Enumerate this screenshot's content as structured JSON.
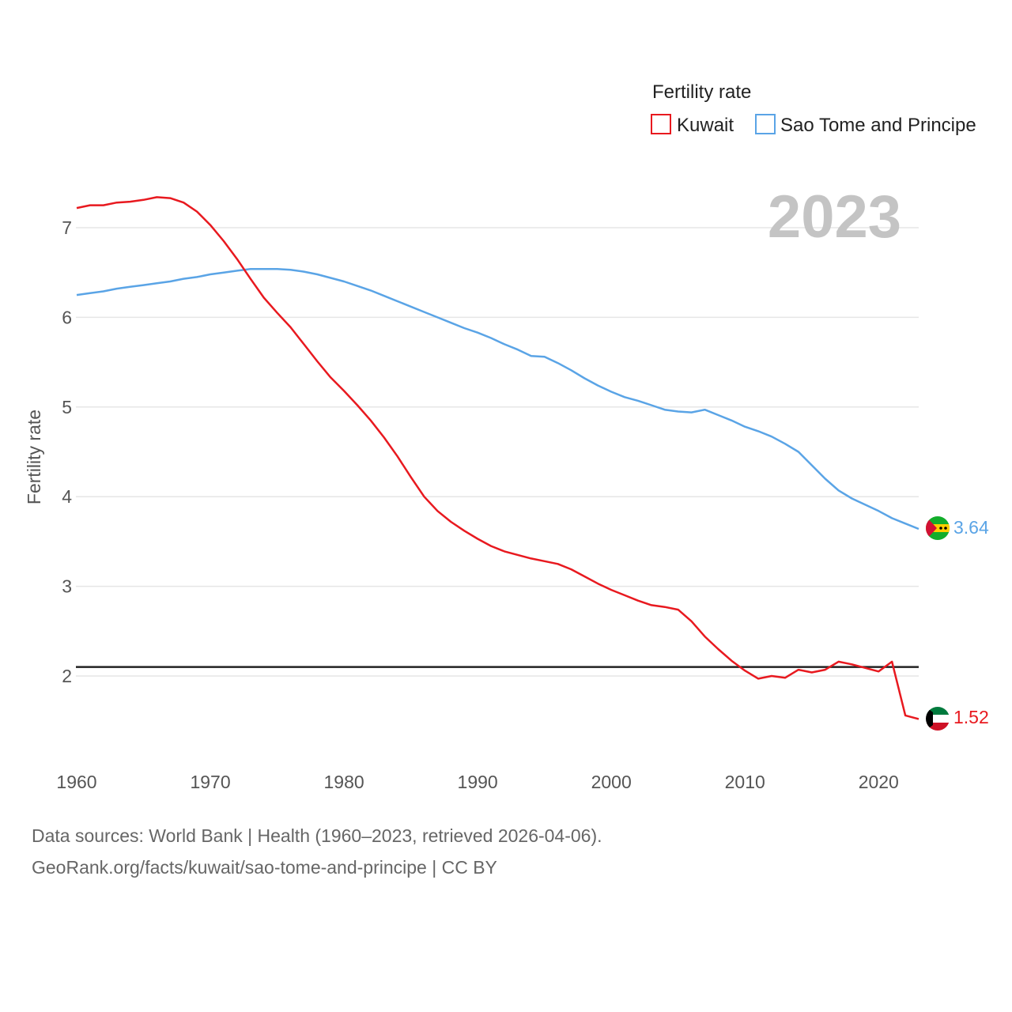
{
  "chart_data": {
    "type": "line",
    "legend_title": "Fertility rate",
    "ylabel": "Fertility rate",
    "xlabel": "",
    "year_label": "2023",
    "xlim": [
      1960,
      2023
    ],
    "ylim": [
      1,
      7.6
    ],
    "x_ticks": [
      1960,
      1970,
      1980,
      1990,
      2000,
      2010,
      2020
    ],
    "y_ticks": [
      2,
      3,
      4,
      5,
      6,
      7
    ],
    "reference_line": 2.1,
    "x": [
      1960,
      1961,
      1962,
      1963,
      1964,
      1965,
      1966,
      1967,
      1968,
      1969,
      1970,
      1971,
      1972,
      1973,
      1974,
      1975,
      1976,
      1977,
      1978,
      1979,
      1980,
      1981,
      1982,
      1983,
      1984,
      1985,
      1986,
      1987,
      1988,
      1989,
      1990,
      1991,
      1992,
      1993,
      1994,
      1995,
      1996,
      1997,
      1998,
      1999,
      2000,
      2001,
      2002,
      2003,
      2004,
      2005,
      2006,
      2007,
      2008,
      2009,
      2010,
      2011,
      2012,
      2013,
      2014,
      2015,
      2016,
      2017,
      2018,
      2019,
      2020,
      2021,
      2022,
      2023
    ],
    "series": [
      {
        "name": "Kuwait",
        "color": "#e8191f",
        "end_value": "1.52",
        "flag": "kuwait-flag",
        "values": [
          7.22,
          7.25,
          7.25,
          7.28,
          7.29,
          7.31,
          7.34,
          7.33,
          7.28,
          7.18,
          7.03,
          6.85,
          6.65,
          6.43,
          6.22,
          6.05,
          5.89,
          5.7,
          5.51,
          5.33,
          5.18,
          5.02,
          4.85,
          4.66,
          4.45,
          4.22,
          4.0,
          3.84,
          3.72,
          3.62,
          3.53,
          3.45,
          3.39,
          3.35,
          3.31,
          3.28,
          3.25,
          3.19,
          3.11,
          3.03,
          2.96,
          2.9,
          2.84,
          2.79,
          2.77,
          2.74,
          2.61,
          2.44,
          2.3,
          2.17,
          2.06,
          1.97,
          2.0,
          1.98,
          2.07,
          2.04,
          2.07,
          2.16,
          2.13,
          2.09,
          2.05,
          2.16,
          1.56,
          1.52
        ]
      },
      {
        "name": "Sao Tome and Principe",
        "color": "#5aa4e6",
        "end_value": "3.64",
        "flag": "sao-tome-flag",
        "values": [
          6.25,
          6.27,
          6.29,
          6.32,
          6.34,
          6.36,
          6.38,
          6.4,
          6.43,
          6.45,
          6.48,
          6.5,
          6.52,
          6.54,
          6.54,
          6.54,
          6.53,
          6.51,
          6.48,
          6.44,
          6.4,
          6.35,
          6.3,
          6.24,
          6.18,
          6.12,
          6.06,
          6.0,
          5.94,
          5.88,
          5.83,
          5.77,
          5.7,
          5.64,
          5.57,
          5.56,
          5.49,
          5.41,
          5.32,
          5.24,
          5.17,
          5.11,
          5.07,
          5.02,
          4.97,
          4.95,
          4.94,
          4.97,
          4.91,
          4.85,
          4.78,
          4.73,
          4.67,
          4.59,
          4.5,
          4.35,
          4.2,
          4.07,
          3.98,
          3.91,
          3.84,
          3.76,
          3.7,
          3.64
        ]
      }
    ]
  },
  "footer": {
    "sources": "Data sources: World Bank | Health (1960–2023, retrieved 2026-04-06).",
    "link": "GeoRank.org/facts/kuwait/sao-tome-and-principe | CC BY"
  }
}
